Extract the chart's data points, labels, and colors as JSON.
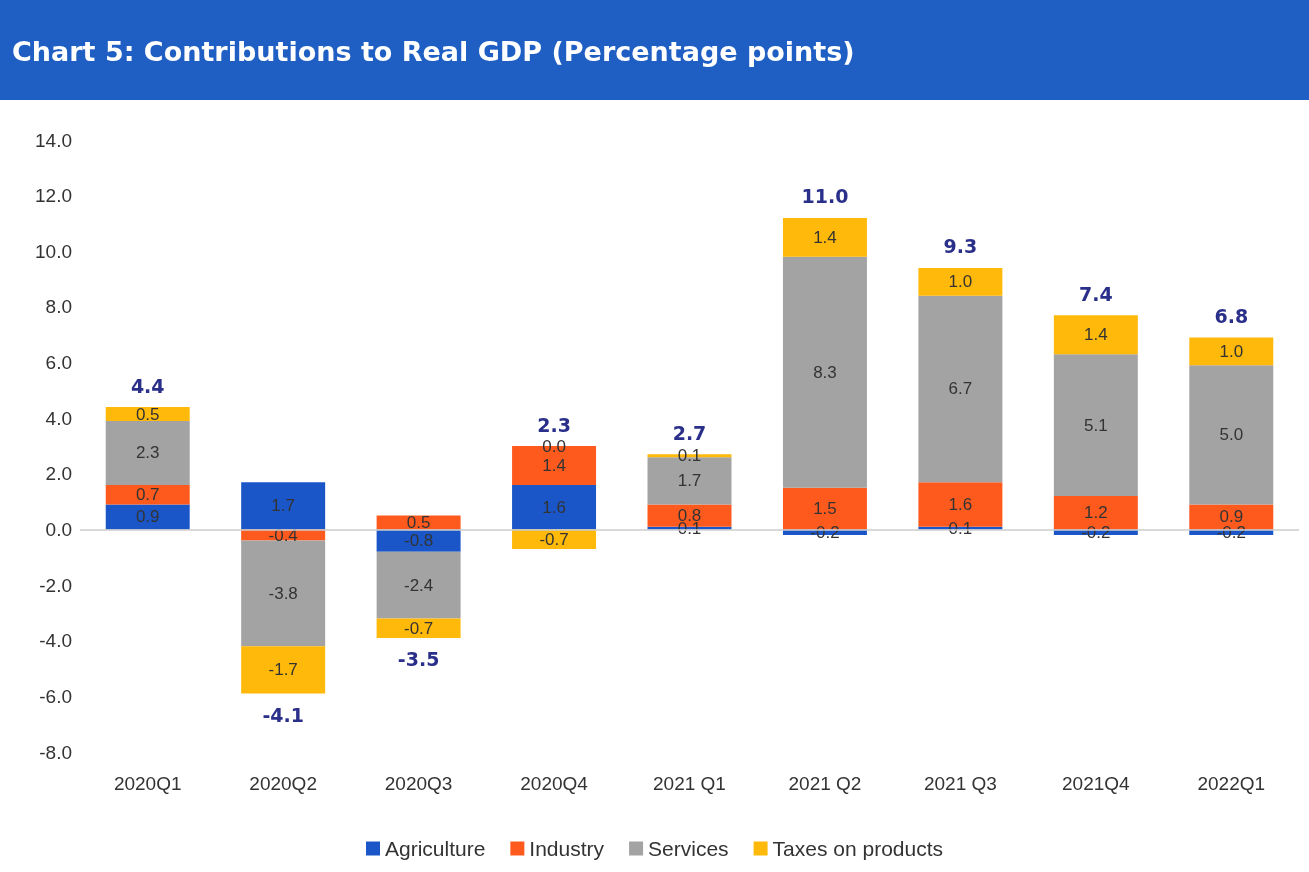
{
  "chart_data": {
    "type": "bar",
    "title": "Chart 5: Contributions to Real GDP (Percentage points)",
    "categories": [
      "2020Q1",
      "2020Q2",
      "2020Q3",
      "2020Q4",
      "2021 Q1",
      "2021 Q2",
      "2021 Q3",
      "2021Q4",
      "2022Q1"
    ],
    "stacked": true,
    "series": [
      {
        "name": "Agriculture",
        "color": "#1a56c8",
        "values": [
          0.9,
          1.7,
          -0.8,
          1.6,
          0.1,
          -0.2,
          0.1,
          -0.2,
          -0.2
        ],
        "value_labels": [
          "0.9",
          "1.7",
          "-0.8",
          "1.6",
          "0.1",
          "-0.2",
          "0.1",
          "-0.2",
          "-0.2"
        ]
      },
      {
        "name": "Industry",
        "color": "#ff5a1e",
        "values": [
          0.7,
          -0.4,
          0.5,
          1.4,
          0.8,
          1.5,
          1.6,
          1.2,
          0.9
        ],
        "value_labels": [
          "0.7",
          "-0.4",
          "0.5",
          "1.4",
          "0.8",
          "1.5",
          "1.6",
          "1.2",
          "0.9"
        ]
      },
      {
        "name": "Services",
        "color": "#a3a3a3",
        "values": [
          2.3,
          -3.8,
          -2.4,
          0.0,
          1.7,
          8.3,
          6.7,
          5.1,
          5.0
        ],
        "value_labels": [
          "2.3",
          "-3.8",
          "-2.4",
          "0.0",
          "1.7",
          "8.3",
          "6.7",
          "5.1",
          "5.0"
        ]
      },
      {
        "name": "Taxes on products",
        "color": "#ffb90a",
        "values": [
          0.5,
          -1.7,
          -0.7,
          -0.7,
          0.1,
          1.4,
          1.0,
          1.4,
          1.0
        ],
        "value_labels": [
          "0.5",
          "-1.7",
          "-0.7",
          "-0.7",
          "0.1",
          "1.4",
          "1.0",
          "1.4",
          "1.0"
        ]
      }
    ],
    "totals": [
      "4.4",
      "-4.1",
      "-3.5",
      "2.3",
      "2.7",
      "11.0",
      "9.3",
      "7.4",
      "6.8"
    ],
    "ref_lines": [
      {
        "axis": "y",
        "value": 0,
        "color": "#cccccc"
      }
    ],
    "ylim": [
      -8,
      14
    ],
    "yticks": [
      {
        "value": -8,
        "label": "-8.0"
      },
      {
        "value": -6,
        "label": "-6.0"
      },
      {
        "value": -4,
        "label": "-4.0"
      },
      {
        "value": -2,
        "label": "-2.0"
      },
      {
        "value": 0,
        "label": "0.0"
      },
      {
        "value": 2,
        "label": "2.0"
      },
      {
        "value": 4,
        "label": "4.0"
      },
      {
        "value": 6,
        "label": "6.0"
      },
      {
        "value": 8,
        "label": "8.0"
      },
      {
        "value": 10,
        "label": "10.0"
      },
      {
        "value": 12,
        "label": "12.0"
      },
      {
        "value": 14,
        "label": "14.0"
      }
    ],
    "grid": false,
    "legend": "bottom"
  }
}
